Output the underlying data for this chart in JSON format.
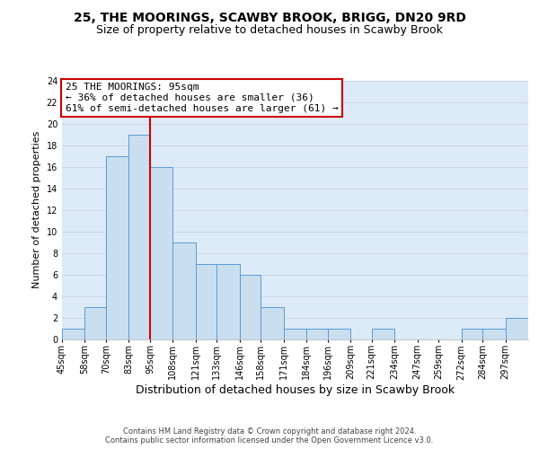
{
  "title_line1": "25, THE MOORINGS, SCAWBY BROOK, BRIGG, DN20 9RD",
  "title_line2": "Size of property relative to detached houses in Scawby Brook",
  "xlabel": "Distribution of detached houses by size in Scawby Brook",
  "ylabel": "Number of detached properties",
  "bin_edges": [
    45,
    58,
    70,
    83,
    95,
    108,
    121,
    133,
    146,
    158,
    171,
    184,
    196,
    209,
    221,
    234,
    247,
    259,
    272,
    284,
    297,
    310
  ],
  "bar_heights": [
    1,
    3,
    17,
    19,
    16,
    9,
    7,
    7,
    6,
    3,
    1,
    1,
    1,
    0,
    1,
    0,
    0,
    0,
    1,
    1,
    2
  ],
  "tick_labels": [
    "45sqm",
    "58sqm",
    "70sqm",
    "83sqm",
    "95sqm",
    "108sqm",
    "121sqm",
    "133sqm",
    "146sqm",
    "158sqm",
    "171sqm",
    "184sqm",
    "196sqm",
    "209sqm",
    "221sqm",
    "234sqm",
    "247sqm",
    "259sqm",
    "272sqm",
    "284sqm",
    "297sqm"
  ],
  "bar_color": "#c9dff0",
  "bar_edge_color": "#5b9bd5",
  "property_size": 95,
  "vline_color": "#cc0000",
  "ylim_max": 24,
  "yticks": [
    0,
    2,
    4,
    6,
    8,
    10,
    12,
    14,
    16,
    18,
    20,
    22,
    24
  ],
  "annotation_title": "25 THE MOORINGS: 95sqm",
  "annotation_line2": "← 36% of detached houses are smaller (36)",
  "annotation_line3": "61% of semi-detached houses are larger (61) →",
  "annotation_box_facecolor": "#ffffff",
  "annotation_box_edgecolor": "#cc0000",
  "grid_color": "#ccd6e8",
  "bg_color": "#ddeaf7",
  "footer_line1": "Contains HM Land Registry data © Crown copyright and database right 2024.",
  "footer_line2": "Contains public sector information licensed under the Open Government Licence v3.0.",
  "title_fontsize": 10,
  "subtitle_fontsize": 9,
  "xlabel_fontsize": 9,
  "ylabel_fontsize": 8,
  "tick_fontsize": 7,
  "annotation_fontsize": 8,
  "footer_fontsize": 6
}
